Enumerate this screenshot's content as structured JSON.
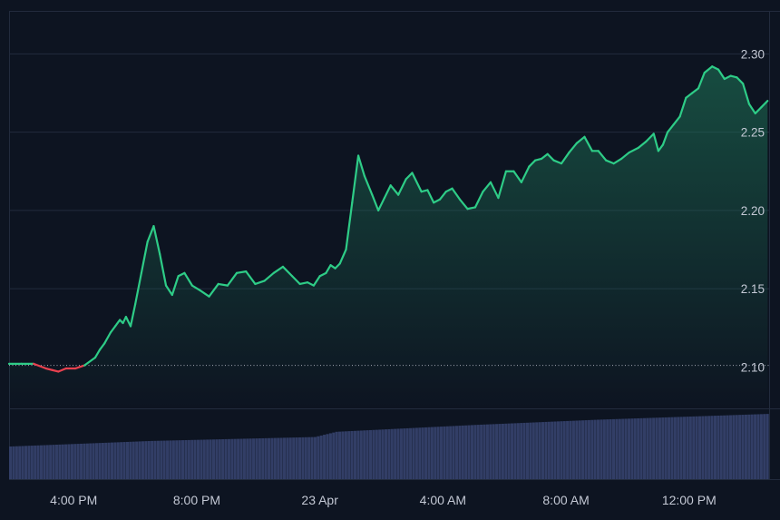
{
  "chart_data": {
    "type": "line",
    "title": "",
    "xlabel": "",
    "ylabel": "",
    "x_ticks": [
      "4:00 PM",
      "8:00 PM",
      "23 Apr",
      "4:00 AM",
      "8:00 AM",
      "12:00 PM"
    ],
    "x_tick_hours": [
      16,
      20,
      24,
      28,
      32,
      36
    ],
    "x_range_hours": [
      13.9,
      38.6
    ],
    "y_ticks": [
      2.1,
      2.15,
      2.2,
      2.25,
      2.3
    ],
    "y_tick_labels": [
      "2.10",
      "2.15",
      "2.20",
      "2.25",
      "2.30"
    ],
    "ylim": [
      2.0735,
      2.3275
    ],
    "baseline": 2.101,
    "grid": true,
    "colors": {
      "background": "#0d1421",
      "grid": "#222b3d",
      "up_line": "#2ecc87",
      "down_line": "#e8414f",
      "area_top": "#1f7a5a",
      "volume": "#323e66",
      "baseline": "#a3a8b3"
    },
    "series": [
      {
        "x_hours": [
          13.9,
          14.3,
          14.7,
          15.1,
          15.3,
          15.5,
          15.75,
          16.05,
          16.35,
          16.7,
          16.85,
          17.0,
          17.2,
          17.35,
          17.5,
          17.6,
          17.7,
          17.85,
          18.0,
          18.2,
          18.4,
          18.6,
          18.8,
          19.0,
          19.2,
          19.4,
          19.6,
          19.85,
          20.1,
          20.4,
          20.7,
          21.0,
          21.3,
          21.6,
          21.9,
          22.2,
          22.5,
          22.8,
          23.1,
          23.35,
          23.6,
          23.8,
          24.0,
          24.2,
          24.35,
          24.5,
          24.65,
          24.85,
          25.05,
          25.25,
          25.45,
          25.7,
          25.9,
          26.1,
          26.3,
          26.55,
          26.8,
          27.0,
          27.3,
          27.5,
          27.7,
          27.9,
          28.1,
          28.3,
          28.55,
          28.8,
          29.05,
          29.3,
          29.55,
          29.8,
          30.05,
          30.3,
          30.55,
          30.8,
          31.0,
          31.2,
          31.4,
          31.6,
          31.85,
          32.1,
          32.35,
          32.6,
          32.85,
          33.05,
          33.3,
          33.55,
          33.8,
          34.05,
          34.35,
          34.6,
          34.85,
          35.0,
          35.15,
          35.3,
          35.5,
          35.7,
          35.9,
          36.1,
          36.3,
          36.5,
          36.75,
          36.95,
          37.15,
          37.35,
          37.55,
          37.75,
          37.95,
          38.15,
          38.35,
          38.55
        ],
        "y": [
          2.102,
          2.102,
          2.102,
          2.099,
          2.098,
          2.097,
          2.099,
          2.099,
          2.101,
          2.106,
          2.111,
          2.115,
          2.122,
          2.126,
          2.13,
          2.128,
          2.132,
          2.126,
          2.14,
          2.16,
          2.18,
          2.19,
          2.172,
          2.152,
          2.146,
          2.158,
          2.16,
          2.152,
          2.149,
          2.145,
          2.153,
          2.152,
          2.16,
          2.161,
          2.153,
          2.155,
          2.16,
          2.164,
          2.158,
          2.153,
          2.154,
          2.152,
          2.158,
          2.16,
          2.165,
          2.163,
          2.166,
          2.175,
          2.205,
          2.235,
          2.222,
          2.21,
          2.2,
          2.208,
          2.216,
          2.21,
          2.22,
          2.224,
          2.212,
          2.213,
          2.205,
          2.207,
          2.212,
          2.214,
          2.207,
          2.201,
          2.202,
          2.212,
          2.218,
          2.208,
          2.225,
          2.225,
          2.218,
          2.228,
          2.232,
          2.233,
          2.236,
          2.232,
          2.23,
          2.237,
          2.243,
          2.247,
          2.238,
          2.238,
          2.232,
          2.23,
          2.233,
          2.237,
          2.24,
          2.244,
          2.249,
          2.238,
          2.242,
          2.25,
          2.255,
          2.26,
          2.272,
          2.275,
          2.278,
          2.288,
          2.292,
          2.29,
          2.284,
          2.286,
          2.285,
          2.281,
          2.268,
          2.262,
          2.266,
          2.27
        ]
      }
    ],
    "volume": {
      "x_hours": [
        13.9,
        18.5,
        23.8,
        24.5,
        29.0,
        33.0,
        38.6
      ],
      "values": [
        1.0,
        1.17,
        1.29,
        1.45,
        1.66,
        1.82,
        2.0
      ]
    }
  }
}
